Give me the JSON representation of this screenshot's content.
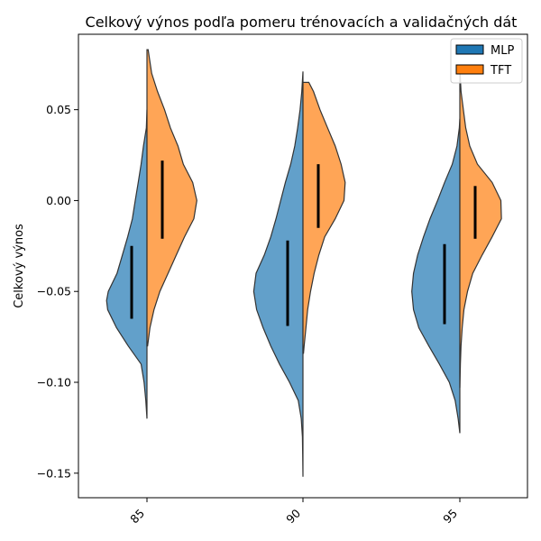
{
  "chart_data": {
    "type": "violin",
    "title": "Celkový výnos podľa pomeru trénovacích a validačných dát",
    "xlabel": "",
    "ylabel": "Celkový výnos",
    "categories": [
      "85",
      "90",
      "95"
    ],
    "ylim": [
      -0.1635,
      0.0915
    ],
    "yticks": [
      -0.15,
      -0.1,
      -0.05,
      0.0,
      0.05
    ],
    "ytick_labels": [
      "−0.15",
      "−0.10",
      "−0.05",
      "0.00",
      "0.05"
    ],
    "grid": false,
    "legend_position": "top-right",
    "series": [
      {
        "name": "MLP",
        "color": "#1f77b4",
        "side": "left",
        "violins": [
          {
            "category": "85",
            "min": -0.12,
            "max": 0.05,
            "q1": -0.065,
            "q3": -0.025,
            "profile": [
              [
                0.05,
                0.0
              ],
              [
                0.04,
                0.01
              ],
              [
                0.03,
                0.06
              ],
              [
                0.02,
                0.1
              ],
              [
                0.01,
                0.15
              ],
              [
                0.0,
                0.2
              ],
              [
                -0.01,
                0.25
              ],
              [
                -0.02,
                0.33
              ],
              [
                -0.03,
                0.42
              ],
              [
                -0.04,
                0.51
              ],
              [
                -0.05,
                0.66
              ],
              [
                -0.055,
                0.69
              ],
              [
                -0.06,
                0.67
              ],
              [
                -0.07,
                0.52
              ],
              [
                -0.08,
                0.32
              ],
              [
                -0.09,
                0.1
              ],
              [
                -0.1,
                0.05
              ],
              [
                -0.11,
                0.02
              ],
              [
                -0.12,
                0.0
              ]
            ]
          },
          {
            "category": "90",
            "min": -0.152,
            "max": 0.071,
            "q1": -0.069,
            "q3": -0.022,
            "profile": [
              [
                0.071,
                0.0
              ],
              [
                0.06,
                0.02
              ],
              [
                0.05,
                0.05
              ],
              [
                0.04,
                0.09
              ],
              [
                0.03,
                0.14
              ],
              [
                0.02,
                0.21
              ],
              [
                0.01,
                0.3
              ],
              [
                0.0,
                0.38
              ],
              [
                -0.01,
                0.46
              ],
              [
                -0.02,
                0.55
              ],
              [
                -0.03,
                0.66
              ],
              [
                -0.04,
                0.8
              ],
              [
                -0.05,
                0.84
              ],
              [
                -0.06,
                0.79
              ],
              [
                -0.07,
                0.68
              ],
              [
                -0.08,
                0.55
              ],
              [
                -0.09,
                0.4
              ],
              [
                -0.1,
                0.23
              ],
              [
                -0.11,
                0.08
              ],
              [
                -0.12,
                0.03
              ],
              [
                -0.13,
                0.01
              ],
              [
                -0.14,
                0.005
              ],
              [
                -0.152,
                0.0
              ]
            ]
          },
          {
            "category": "95",
            "min": -0.128,
            "max": 0.045,
            "q1": -0.068,
            "q3": -0.024,
            "profile": [
              [
                0.045,
                0.0
              ],
              [
                0.04,
                0.01
              ],
              [
                0.03,
                0.05
              ],
              [
                0.02,
                0.13
              ],
              [
                0.01,
                0.26
              ],
              [
                0.0,
                0.38
              ],
              [
                -0.01,
                0.51
              ],
              [
                -0.02,
                0.62
              ],
              [
                -0.03,
                0.72
              ],
              [
                -0.04,
                0.79
              ],
              [
                -0.05,
                0.82
              ],
              [
                -0.06,
                0.79
              ],
              [
                -0.07,
                0.7
              ],
              [
                -0.08,
                0.53
              ],
              [
                -0.09,
                0.35
              ],
              [
                -0.1,
                0.18
              ],
              [
                -0.11,
                0.08
              ],
              [
                -0.12,
                0.03
              ],
              [
                -0.128,
                0.0
              ]
            ]
          }
        ]
      },
      {
        "name": "TFT",
        "color": "#ff7f0e",
        "side": "right",
        "violins": [
          {
            "category": "85",
            "min": -0.08,
            "max": 0.083,
            "q1": -0.021,
            "q3": 0.022,
            "profile": [
              [
                0.083,
                0.02
              ],
              [
                0.07,
                0.08
              ],
              [
                0.06,
                0.18
              ],
              [
                0.05,
                0.3
              ],
              [
                0.04,
                0.4
              ],
              [
                0.03,
                0.53
              ],
              [
                0.02,
                0.62
              ],
              [
                0.01,
                0.78
              ],
              [
                0.0,
                0.85
              ],
              [
                -0.01,
                0.8
              ],
              [
                -0.02,
                0.64
              ],
              [
                -0.03,
                0.5
              ],
              [
                -0.04,
                0.36
              ],
              [
                -0.05,
                0.22
              ],
              [
                -0.06,
                0.12
              ],
              [
                -0.07,
                0.05
              ],
              [
                -0.08,
                0.01
              ]
            ]
          },
          {
            "category": "90",
            "min": -0.084,
            "max": 0.065,
            "q1": -0.015,
            "q3": 0.02,
            "profile": [
              [
                0.065,
                0.1
              ],
              [
                0.06,
                0.18
              ],
              [
                0.05,
                0.29
              ],
              [
                0.04,
                0.42
              ],
              [
                0.03,
                0.55
              ],
              [
                0.02,
                0.65
              ],
              [
                0.01,
                0.72
              ],
              [
                0.0,
                0.7
              ],
              [
                -0.01,
                0.55
              ],
              [
                -0.02,
                0.37
              ],
              [
                -0.03,
                0.27
              ],
              [
                -0.04,
                0.19
              ],
              [
                -0.05,
                0.13
              ],
              [
                -0.06,
                0.08
              ],
              [
                -0.07,
                0.05
              ],
              [
                -0.08,
                0.02
              ],
              [
                -0.084,
                0.01
              ]
            ]
          },
          {
            "category": "95",
            "min": -0.103,
            "max": 0.073,
            "q1": -0.021,
            "q3": 0.008,
            "profile": [
              [
                0.073,
                0.0
              ],
              [
                0.06,
                0.02
              ],
              [
                0.05,
                0.06
              ],
              [
                0.04,
                0.1
              ],
              [
                0.03,
                0.17
              ],
              [
                0.02,
                0.3
              ],
              [
                0.01,
                0.55
              ],
              [
                0.0,
                0.7
              ],
              [
                -0.01,
                0.71
              ],
              [
                -0.02,
                0.55
              ],
              [
                -0.03,
                0.38
              ],
              [
                -0.04,
                0.22
              ],
              [
                -0.05,
                0.13
              ],
              [
                -0.06,
                0.07
              ],
              [
                -0.07,
                0.04
              ],
              [
                -0.08,
                0.02
              ],
              [
                -0.09,
                0.01
              ],
              [
                -0.103,
                0.0
              ]
            ]
          }
        ]
      }
    ]
  }
}
